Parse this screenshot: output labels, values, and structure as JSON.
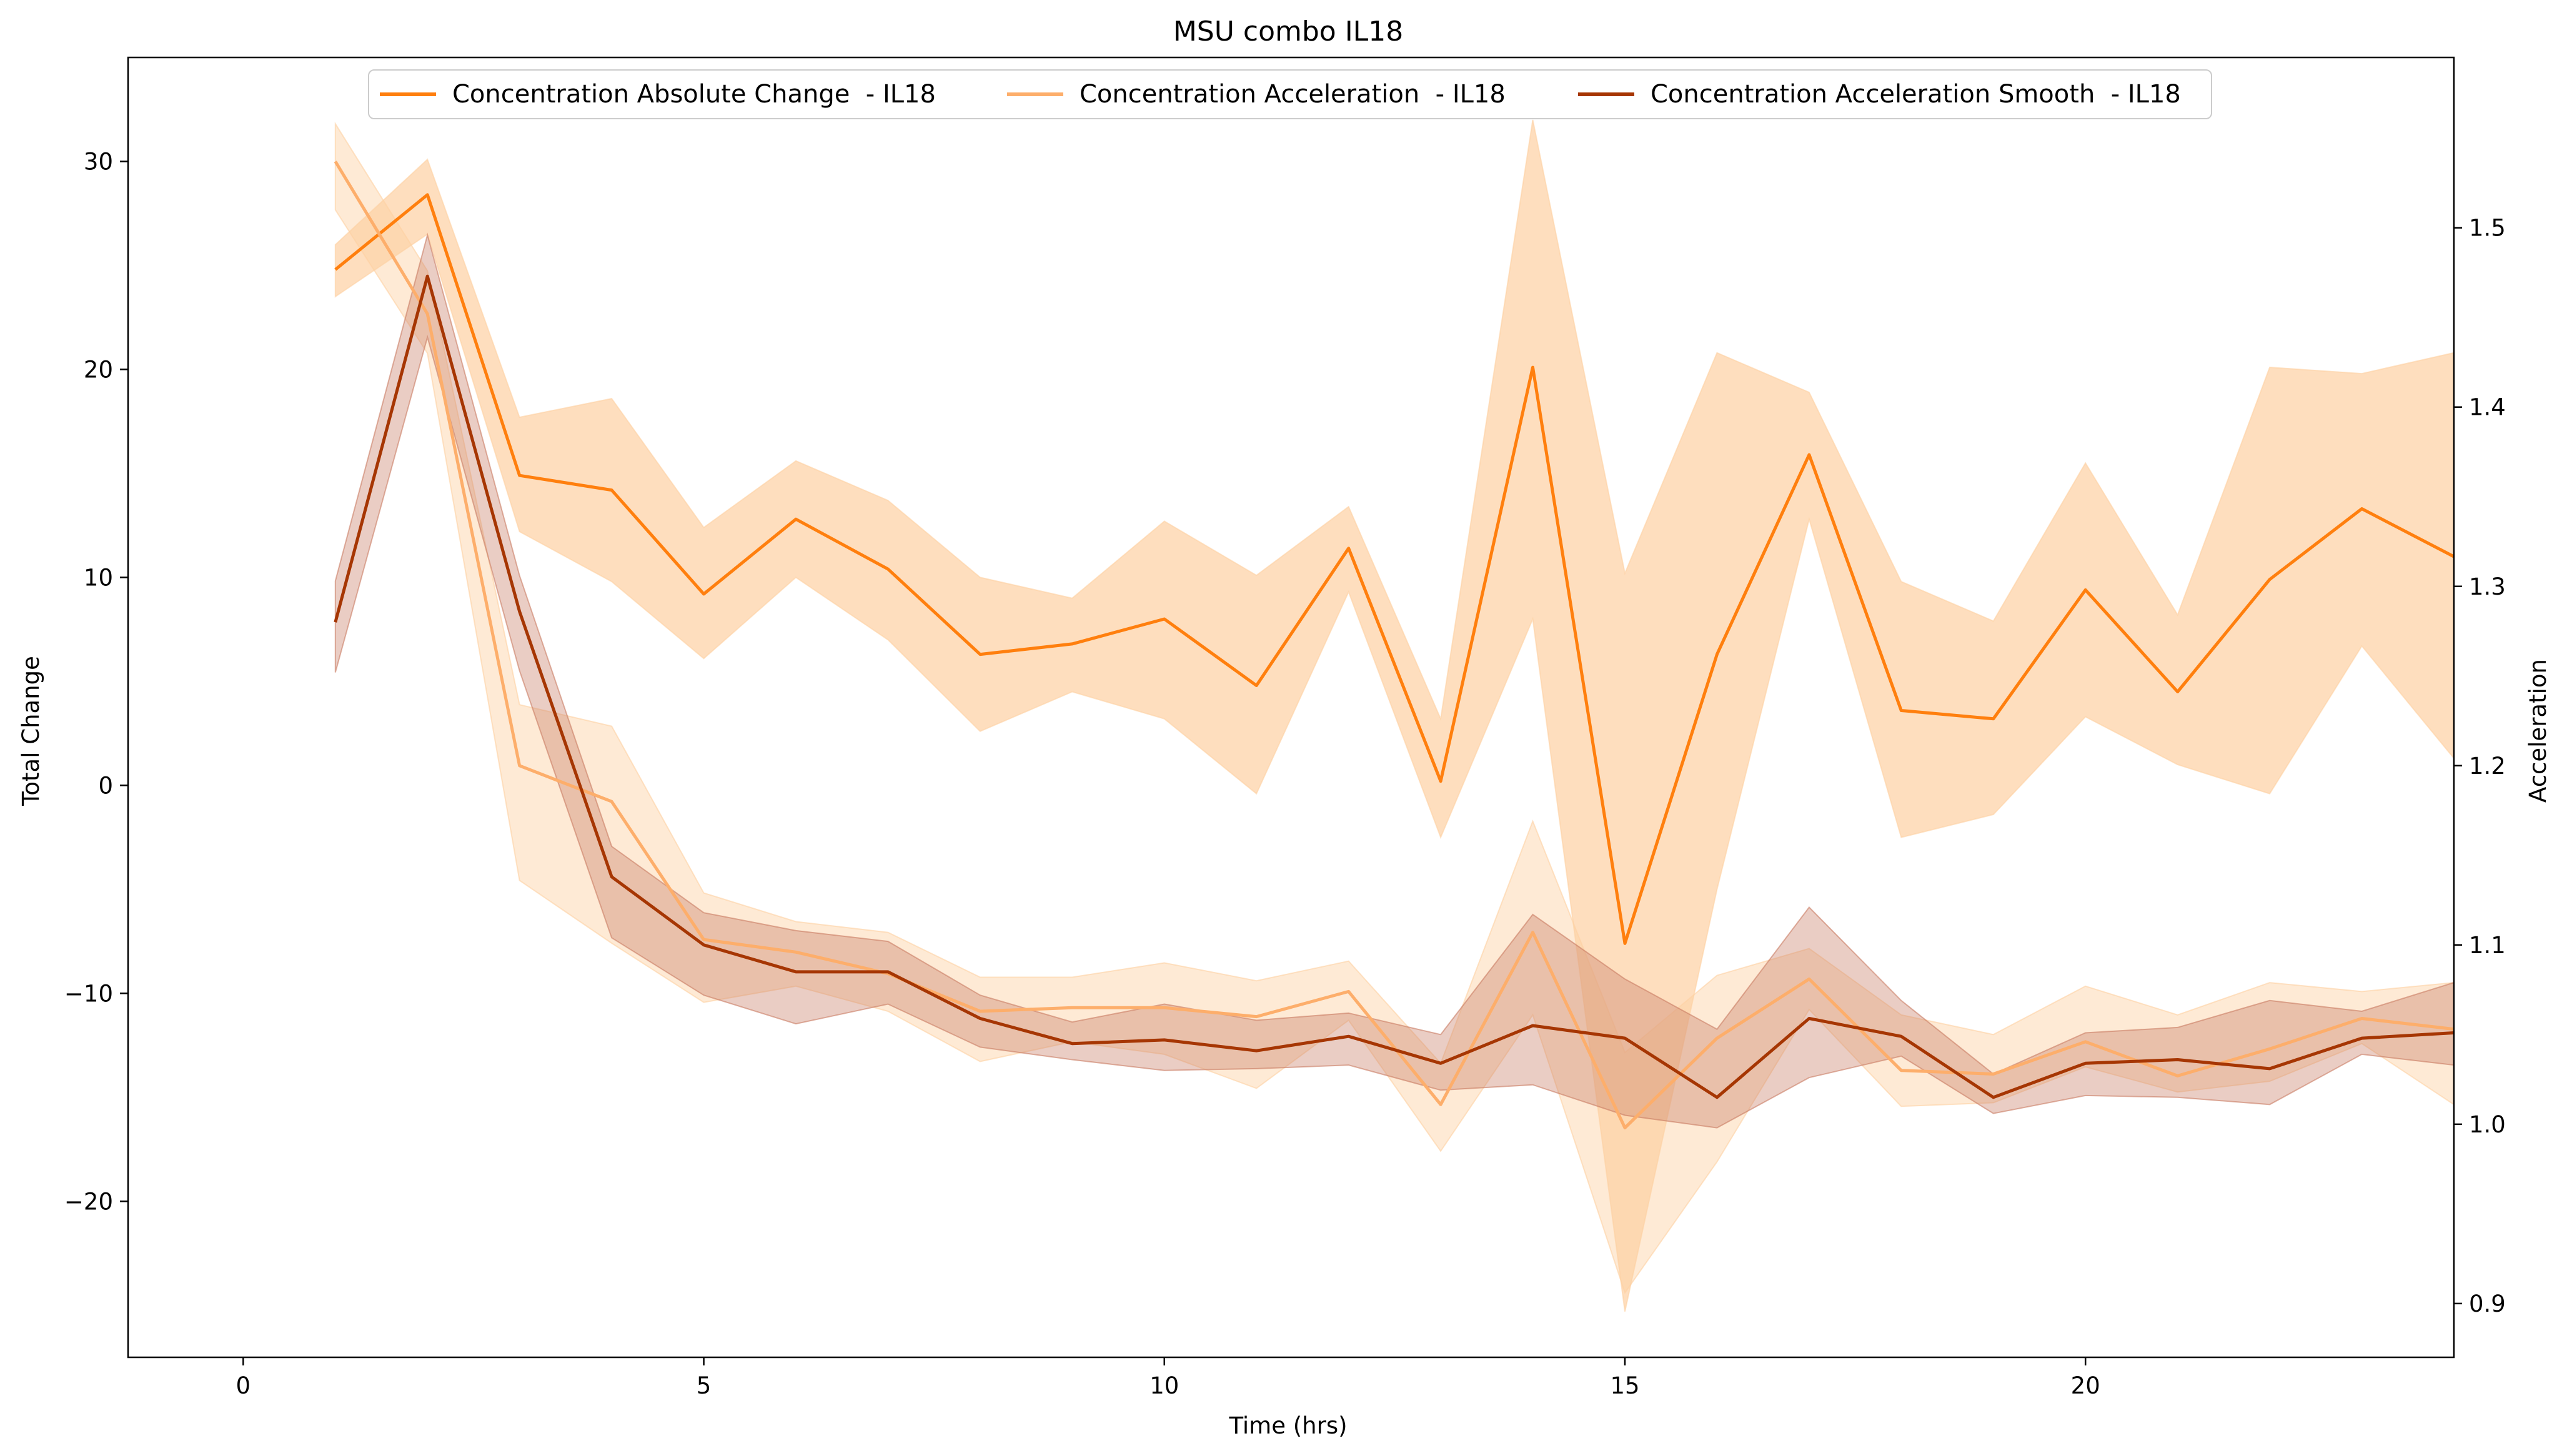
{
  "chart_data": {
    "type": "line",
    "title": "MSU combo IL18",
    "xlabel": "Time (hrs)",
    "ylabel": "Total Change",
    "y2label": "Acceleration",
    "xlim": [
      -1.25,
      24
    ],
    "ylim": [
      -27.5,
      35
    ],
    "y2lim": [
      0.87,
      1.595
    ],
    "xticks": [
      0,
      5,
      10,
      15,
      20
    ],
    "yticks": [
      -20,
      -10,
      0,
      10,
      20,
      30
    ],
    "y2ticks": [
      0.9,
      1.0,
      1.1,
      1.2,
      1.3,
      1.4,
      1.5
    ],
    "legend_position": "top-center",
    "legend_ncol": 3,
    "grid": false,
    "x": [
      1,
      2,
      3,
      4,
      5,
      6,
      7,
      8,
      9,
      10,
      11,
      12,
      13,
      14,
      15,
      16,
      17,
      18,
      19,
      20,
      21,
      22,
      23,
      24
    ],
    "series": [
      {
        "name": "Concentration Absolute Change  - IL18",
        "axis": "left",
        "color": "#ff7f0e",
        "band_color": "#fdd0a2",
        "band_opacity": 0.7,
        "values": [
          24.8,
          28.4,
          14.9,
          14.2,
          9.2,
          12.8,
          10.4,
          6.3,
          6.8,
          8.0,
          4.8,
          11.4,
          0.2,
          20.1,
          -7.6,
          6.3,
          15.9,
          3.6,
          3.2,
          9.4,
          4.5,
          9.9,
          13.3,
          11.0
        ],
        "lower": [
          23.5,
          26.5,
          12.2,
          9.8,
          6.1,
          10.0,
          7.0,
          2.6,
          4.5,
          3.2,
          -0.4,
          9.3,
          -2.5,
          8.0,
          -25.3,
          -5.0,
          12.8,
          -2.5,
          -1.4,
          3.3,
          1.0,
          -0.4,
          6.7,
          1.3
        ],
        "upper": [
          26.0,
          30.1,
          17.7,
          18.6,
          12.4,
          15.6,
          13.7,
          10.0,
          9.0,
          12.7,
          10.1,
          13.4,
          3.2,
          32.0,
          10.2,
          20.8,
          18.9,
          9.8,
          7.9,
          15.5,
          8.2,
          20.1,
          19.8,
          20.8
        ]
      },
      {
        "name": "Concentration Acceleration  - IL18",
        "axis": "right",
        "color": "#fdae6b",
        "band_color": "#fdd0a2",
        "band_opacity": 0.45,
        "values": [
          1.537,
          1.452,
          1.2,
          1.18,
          1.103,
          1.096,
          1.084,
          1.063,
          1.065,
          1.065,
          1.06,
          1.074,
          1.011,
          1.107,
          0.998,
          1.048,
          1.081,
          1.03,
          1.028,
          1.046,
          1.027,
          1.042,
          1.059,
          1.053
        ],
        "lower": [
          1.51,
          1.43,
          1.136,
          1.101,
          1.068,
          1.077,
          1.063,
          1.035,
          1.046,
          1.039,
          1.02,
          1.058,
          0.985,
          1.061,
          0.906,
          0.979,
          1.064,
          1.01,
          1.012,
          1.032,
          1.018,
          1.024,
          1.045,
          1.011
        ],
        "upper": [
          1.558,
          1.476,
          1.234,
          1.222,
          1.129,
          1.113,
          1.107,
          1.082,
          1.082,
          1.09,
          1.08,
          1.091,
          1.034,
          1.169,
          1.04,
          1.083,
          1.098,
          1.061,
          1.05,
          1.077,
          1.061,
          1.079,
          1.074,
          1.079
        ]
      },
      {
        "name": "Concentration Acceleration Smooth  - IL18",
        "axis": "right",
        "color": "#a63603",
        "band_color": "#c97b63",
        "band_opacity": 0.38,
        "values": [
          1.28,
          1.473,
          1.286,
          1.138,
          1.1,
          1.085,
          1.085,
          1.059,
          1.045,
          1.047,
          1.041,
          1.049,
          1.034,
          1.055,
          1.048,
          1.015,
          1.059,
          1.049,
          1.015,
          1.034,
          1.036,
          1.031,
          1.048,
          1.051
        ],
        "lower": [
          1.252,
          1.439,
          1.253,
          1.104,
          1.072,
          1.056,
          1.067,
          1.043,
          1.036,
          1.03,
          1.031,
          1.033,
          1.019,
          1.022,
          1.005,
          0.998,
          1.026,
          1.038,
          1.006,
          1.016,
          1.015,
          1.011,
          1.039,
          1.033
        ],
        "upper": [
          1.303,
          1.496,
          1.306,
          1.155,
          1.118,
          1.108,
          1.102,
          1.072,
          1.057,
          1.067,
          1.058,
          1.062,
          1.05,
          1.117,
          1.081,
          1.053,
          1.121,
          1.069,
          1.028,
          1.051,
          1.054,
          1.069,
          1.063,
          1.079
        ]
      }
    ]
  }
}
